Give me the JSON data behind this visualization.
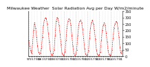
{
  "title": "Milwaukee Weather  Solar Radiation Avg per Day W/m2/minute",
  "title_fontsize": 4.5,
  "background_color": "#ffffff",
  "line_color": "#ff0000",
  "grid_color": "#c0c0c0",
  "ylabel_color": "#000000",
  "ylim": [
    0,
    350
  ],
  "yticks": [
    0,
    50,
    100,
    150,
    200,
    250,
    300,
    350
  ],
  "ytick_fontsize": 3.5,
  "xtick_fontsize": 3.0,
  "values": [
    120,
    80,
    40,
    20,
    100,
    200,
    260,
    220,
    150,
    80,
    30,
    15,
    20,
    60,
    150,
    240,
    280,
    300,
    290,
    250,
    180,
    110,
    40,
    10,
    10,
    20,
    50,
    160,
    270,
    300,
    290,
    240,
    170,
    90,
    20,
    5,
    10,
    30,
    120,
    220,
    270,
    290,
    280,
    240,
    160,
    80,
    20,
    5,
    15,
    50,
    160,
    240,
    270,
    280,
    260,
    210,
    140,
    60,
    15,
    5,
    10,
    40,
    140,
    220,
    260,
    280,
    250,
    200,
    130,
    50,
    15,
    5,
    10,
    30,
    120,
    200,
    240,
    260,
    240,
    180,
    110,
    40,
    10,
    5,
    10,
    50,
    140,
    220,
    250,
    270,
    260,
    220,
    150,
    70,
    20,
    40
  ],
  "num_years": 8,
  "vline_positions": [
    0,
    12,
    24,
    36,
    48,
    60,
    72,
    84
  ],
  "year_labels": [
    "97",
    "98",
    "99",
    "00",
    "01",
    "02",
    "03",
    "04"
  ]
}
